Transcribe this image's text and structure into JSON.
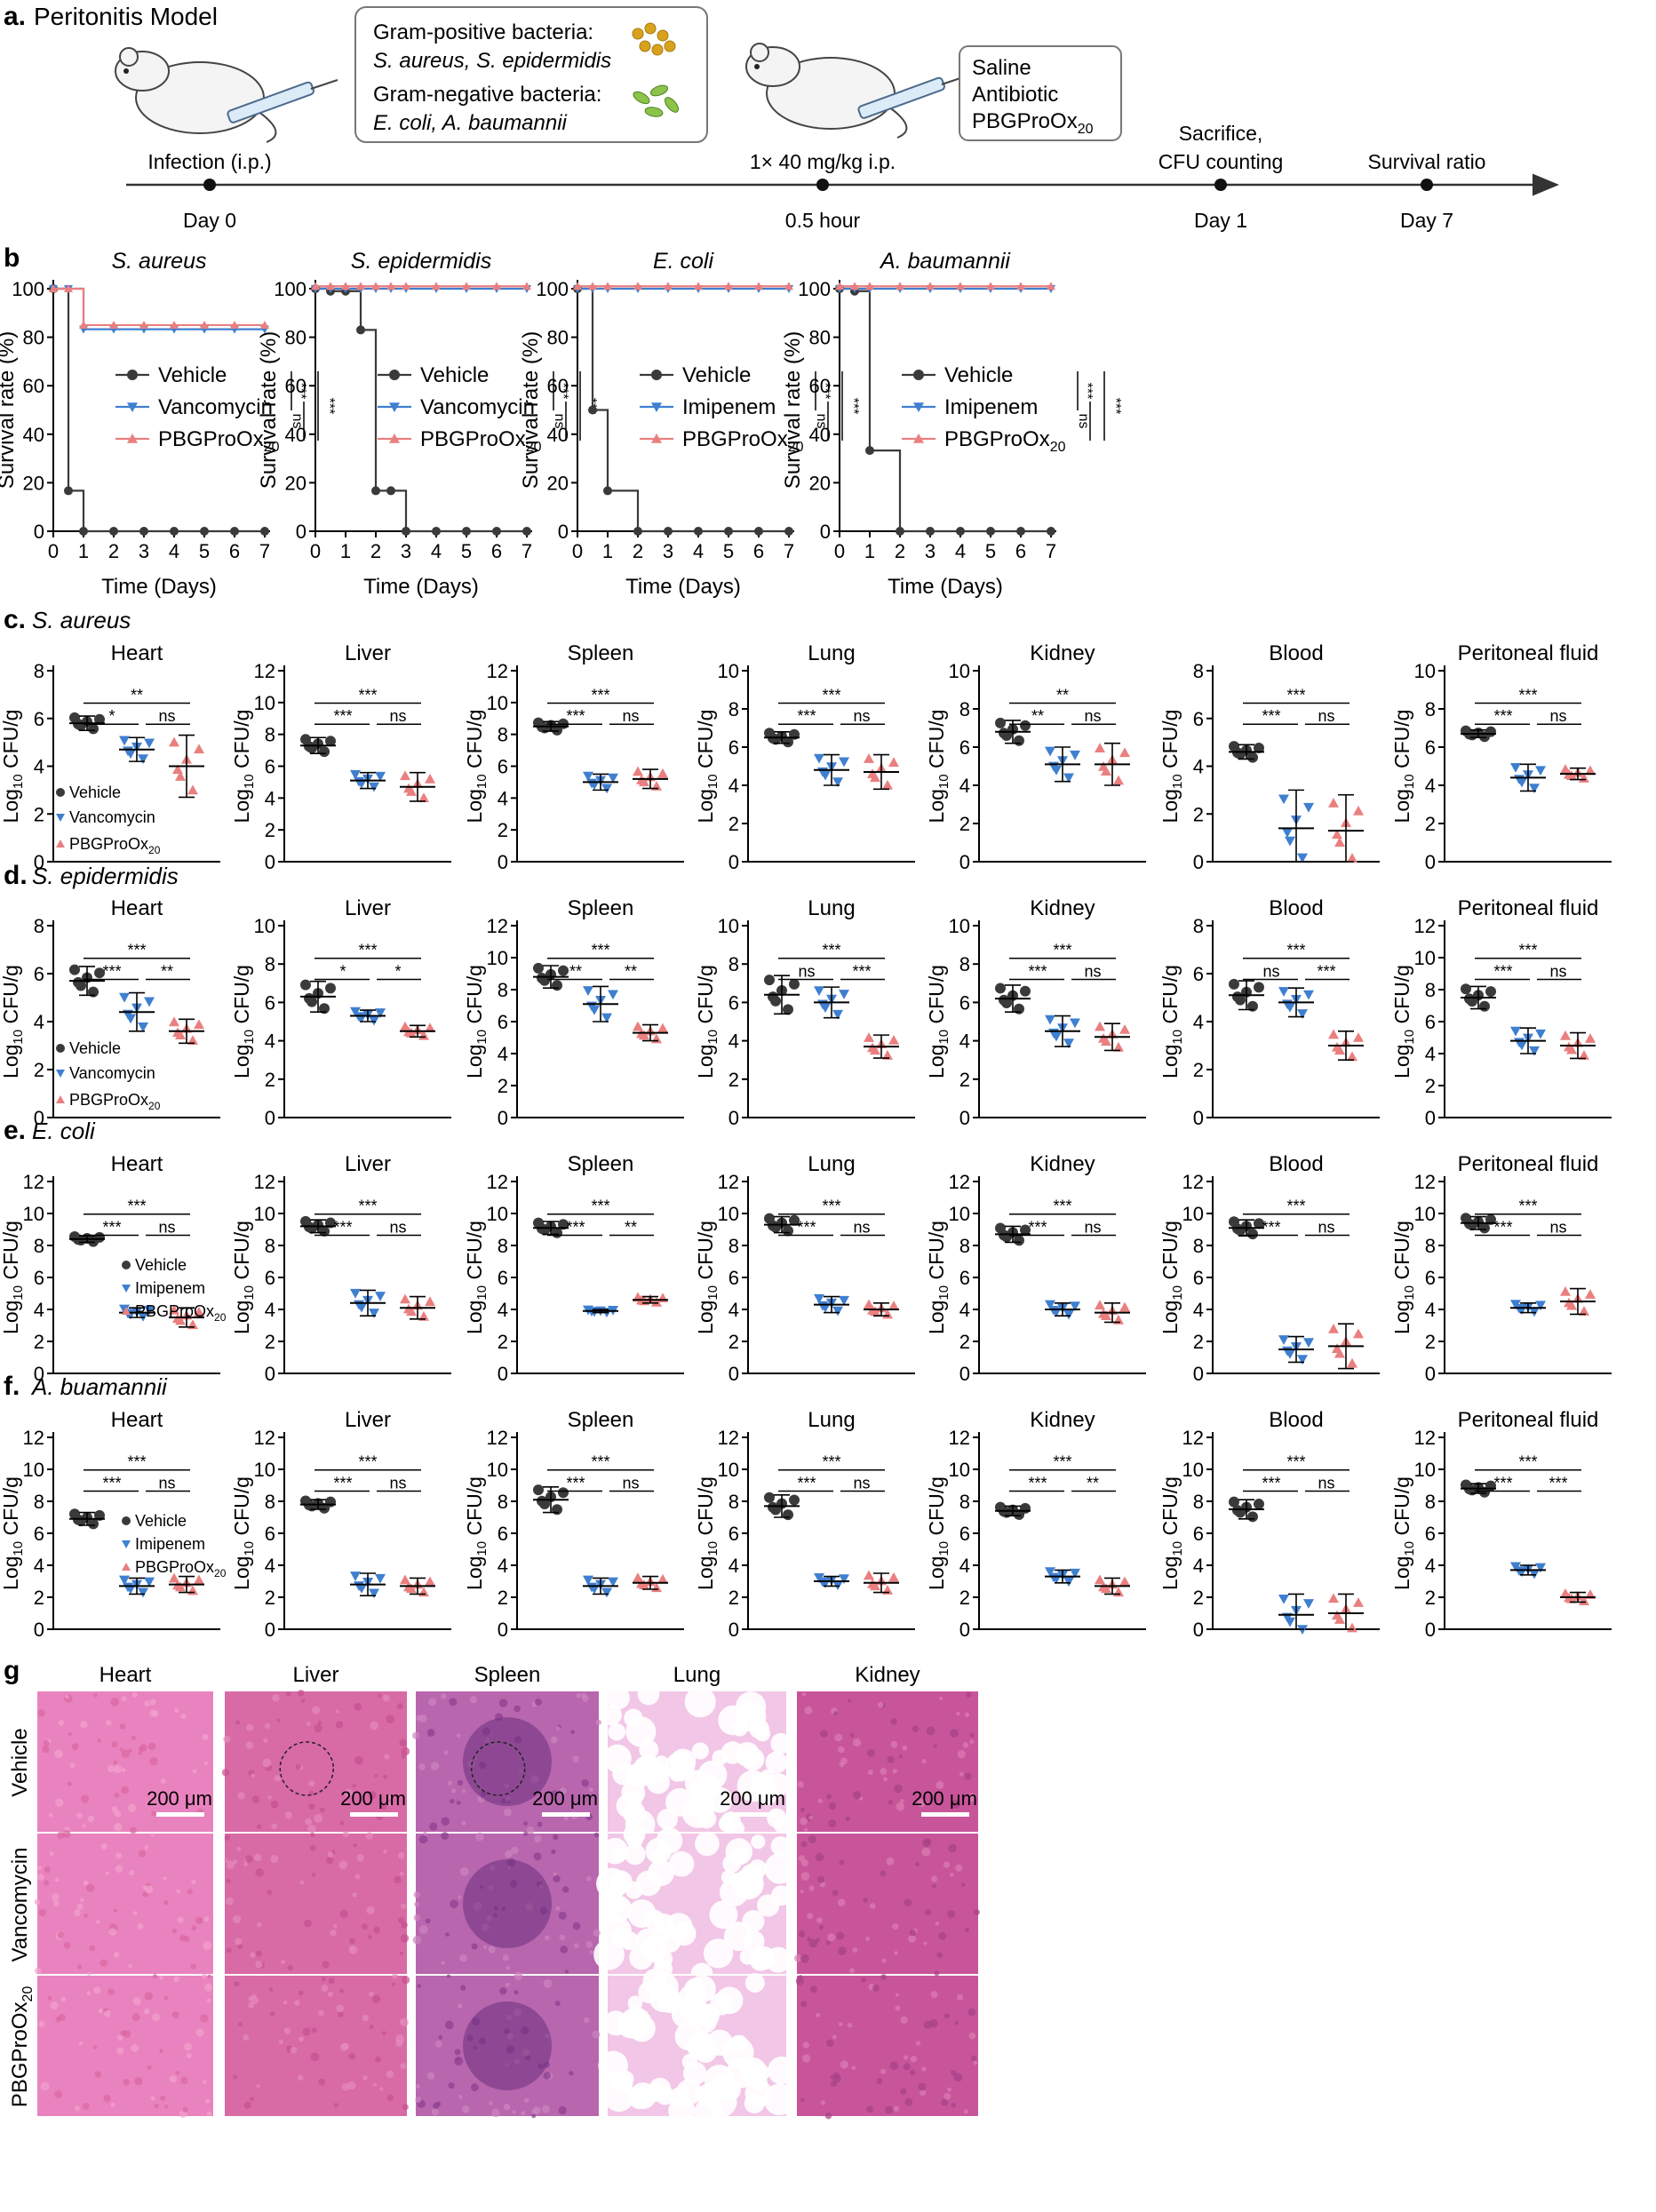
{
  "panel_a": {
    "letter": "a.",
    "title": "Peritonitis Model",
    "box1_line1": "Gram-positive bacteria:",
    "box1_line2": "S. aureus, S. epidermidis",
    "box1_line3": "Gram-negative bacteria:",
    "box1_line4": "E. coli, A. baumannii",
    "box2_line1": "Saline",
    "box2_line2": "Antibiotic",
    "box2_line3": "PBGProOx",
    "box2_line3_sub": "20",
    "t_infection": "Infection (i.p.)",
    "t_day0": "Day 0",
    "t_dose": "1× 40 mg/kg i.p.",
    "t_half": "0.5 hour",
    "t_sac1": "Sacrifice,",
    "t_sac2": "CFU counting",
    "t_day1": "Day 1",
    "t_surv": "Survival ratio",
    "t_day7": "Day 7"
  },
  "panel_b": {
    "letter": "b",
    "ylabel": "Survival rate (%)",
    "xlabel": "Time (Days)",
    "sig1": "***",
    "sig2": "ns",
    "sig3": "***"
  },
  "panel_c": {
    "letter": "c.",
    "organism": "S. aureus"
  },
  "panel_d": {
    "letter": "d.",
    "organism": "S. epidermidis"
  },
  "panel_e": {
    "letter": "e.",
    "organism": "E. coli"
  },
  "panel_f": {
    "letter": "f.",
    "organism": "A. buamannii"
  },
  "cfu_ylabel_pre": "Log",
  "cfu_ylabel_sub": "10",
  "cfu_ylabel_post": " CFU/g",
  "legend_vehicle": "Vehicle",
  "legend_vanco": "Vancomycin",
  "legend_imipenem": "Imipenem",
  "legend_pbg": "PBGProOx",
  "legend_pbg_sub": "20",
  "panel_g": {
    "letter": "g",
    "columns": [
      "Heart",
      "Liver",
      "Spleen",
      "Lung",
      "Kidney"
    ],
    "rows": [
      "Vehicle",
      "Vancomycin",
      "PBGProOx"
    ],
    "row3_sub": "20",
    "scale": "200 μm"
  },
  "colors": {
    "vehicle": "#3a3a3a",
    "antibiotic": "#3f7fd0",
    "pbg": "#ea7f7f"
  },
  "chart_data": [
    {
      "type": "line",
      "panel": "b",
      "title": "S. aureus",
      "x": [
        0,
        0.5,
        1,
        2,
        3,
        4,
        5,
        6,
        7
      ],
      "xlim": [
        0,
        7
      ],
      "ylim": [
        0,
        100
      ],
      "series": [
        {
          "name": "Vehicle",
          "values": [
            100,
            16.7,
            0,
            0,
            0,
            0,
            0,
            0,
            0
          ]
        },
        {
          "name": "Vancomycin",
          "values": [
            100,
            100,
            83.3,
            83.3,
            83.3,
            83.3,
            83.3,
            83.3,
            83.3
          ]
        },
        {
          "name": "PBGProOx20",
          "values": [
            100,
            100,
            85,
            85,
            85,
            85,
            85,
            85,
            85
          ]
        }
      ]
    },
    {
      "type": "line",
      "panel": "b",
      "title": "S. epidermidis",
      "x": [
        0,
        0.5,
        1,
        1.5,
        2,
        2.5,
        3,
        4,
        5,
        6,
        7
      ],
      "xlim": [
        0,
        7
      ],
      "ylim": [
        0,
        100
      ],
      "series": [
        {
          "name": "Vehicle",
          "values": [
            100,
            99,
            99,
            83,
            16.7,
            16.7,
            0,
            0,
            0,
            0,
            0
          ]
        },
        {
          "name": "Vancomycin",
          "values": [
            100,
            100,
            100,
            100,
            100,
            100,
            100,
            100,
            100,
            100,
            100
          ]
        },
        {
          "name": "PBGProOx20",
          "values": [
            101,
            101,
            101,
            101,
            101,
            101,
            101,
            101,
            101,
            101,
            101
          ]
        }
      ]
    },
    {
      "type": "line",
      "panel": "b",
      "title": "E. coli",
      "x": [
        0,
        0.5,
        1,
        2,
        3,
        4,
        5,
        6,
        7
      ],
      "xlim": [
        0,
        7
      ],
      "ylim": [
        0,
        100
      ],
      "series": [
        {
          "name": "Vehicle",
          "values": [
            100,
            50,
            16.7,
            0,
            0,
            0,
            0,
            0,
            0
          ]
        },
        {
          "name": "Imipenem",
          "values": [
            100,
            100,
            100,
            100,
            100,
            100,
            100,
            100,
            100
          ]
        },
        {
          "name": "PBGProOx20",
          "values": [
            101,
            101,
            101,
            101,
            101,
            101,
            101,
            101,
            101
          ]
        }
      ]
    },
    {
      "type": "line",
      "panel": "b",
      "title": "A. baumannii",
      "x": [
        0,
        0.5,
        1,
        2,
        3,
        4,
        5,
        6,
        7
      ],
      "xlim": [
        0,
        7
      ],
      "ylim": [
        0,
        100
      ],
      "series": [
        {
          "name": "Vehicle",
          "values": [
            100,
            99,
            33.3,
            0,
            0,
            0,
            0,
            0,
            0
          ]
        },
        {
          "name": "Imipenem",
          "values": [
            100,
            100,
            100,
            100,
            100,
            100,
            100,
            100,
            100
          ]
        },
        {
          "name": "PBGProOx20",
          "values": [
            101,
            101,
            101,
            101,
            101,
            101,
            101,
            101,
            101
          ]
        }
      ]
    },
    {
      "type": "scatter",
      "panel": "c",
      "title": "Heart",
      "ymax": 8,
      "ystep": 2,
      "means": [
        5.8,
        4.7,
        4.0
      ],
      "sd": [
        0.3,
        0.5,
        1.3
      ],
      "sigs": [
        "*",
        "ns",
        "**"
      ],
      "legend": "vanco"
    },
    {
      "type": "scatter",
      "panel": "c",
      "title": "Liver",
      "ymax": 12,
      "ystep": 2,
      "means": [
        7.3,
        5.1,
        4.7
      ],
      "sd": [
        0.5,
        0.5,
        0.9
      ],
      "sigs": [
        "***",
        "ns",
        "***"
      ]
    },
    {
      "type": "scatter",
      "panel": "c",
      "title": "Spleen",
      "ymax": 12,
      "ystep": 2,
      "means": [
        8.5,
        5.0,
        5.2
      ],
      "sd": [
        0.3,
        0.5,
        0.6
      ],
      "sigs": [
        "***",
        "ns",
        "***"
      ]
    },
    {
      "type": "scatter",
      "panel": "c",
      "title": "Lung",
      "ymax": 10,
      "ystep": 2,
      "means": [
        6.5,
        4.8,
        4.7
      ],
      "sd": [
        0.3,
        0.8,
        0.9
      ],
      "sigs": [
        "***",
        "ns",
        "***"
      ]
    },
    {
      "type": "scatter",
      "panel": "c",
      "title": "Kidney",
      "ymax": 10,
      "ystep": 2,
      "means": [
        6.8,
        5.1,
        5.1
      ],
      "sd": [
        0.6,
        0.9,
        1.1
      ],
      "sigs": [
        "**",
        "ns",
        "**"
      ]
    },
    {
      "type": "scatter",
      "panel": "c",
      "title": "Blood",
      "ymax": 8,
      "ystep": 2,
      "means": [
        4.6,
        1.4,
        1.3
      ],
      "sd": [
        0.3,
        1.6,
        1.5
      ],
      "sigs": [
        "***",
        "ns",
        "***"
      ]
    },
    {
      "type": "scatter",
      "panel": "c",
      "title": "Peritoneal fluid",
      "ymax": 10,
      "ystep": 2,
      "means": [
        6.7,
        4.4,
        4.6
      ],
      "sd": [
        0.2,
        0.7,
        0.3
      ],
      "sigs": [
        "***",
        "ns",
        "***"
      ]
    },
    {
      "type": "scatter",
      "panel": "d",
      "title": "Heart",
      "ymax": 8,
      "ystep": 2,
      "means": [
        5.7,
        4.4,
        3.6
      ],
      "sd": [
        0.6,
        0.8,
        0.5
      ],
      "sigs": [
        "***",
        "**",
        "***"
      ],
      "legend": "vanco"
    },
    {
      "type": "scatter",
      "panel": "d",
      "title": "Liver",
      "ymax": 10,
      "ystep": 2,
      "means": [
        6.3,
        5.3,
        4.5
      ],
      "sd": [
        0.8,
        0.3,
        0.3
      ],
      "sigs": [
        "*",
        "*",
        "***"
      ]
    },
    {
      "type": "scatter",
      "panel": "d",
      "title": "Spleen",
      "ymax": 12,
      "ystep": 2,
      "means": [
        8.8,
        7.1,
        5.3
      ],
      "sd": [
        0.7,
        1.1,
        0.5
      ],
      "sigs": [
        "**",
        "**",
        "***"
      ]
    },
    {
      "type": "scatter",
      "panel": "d",
      "title": "Lung",
      "ymax": 10,
      "ystep": 2,
      "means": [
        6.4,
        6.0,
        3.7
      ],
      "sd": [
        1.0,
        0.8,
        0.6
      ],
      "sigs": [
        "ns",
        "***",
        "***"
      ]
    },
    {
      "type": "scatter",
      "panel": "d",
      "title": "Kidney",
      "ymax": 10,
      "ystep": 2,
      "means": [
        6.2,
        4.5,
        4.2
      ],
      "sd": [
        0.7,
        0.8,
        0.7
      ],
      "sigs": [
        "***",
        "ns",
        "***"
      ]
    },
    {
      "type": "scatter",
      "panel": "d",
      "title": "Blood",
      "ymax": 8,
      "ystep": 2,
      "means": [
        5.1,
        4.8,
        3.0
      ],
      "sd": [
        0.6,
        0.6,
        0.6
      ],
      "sigs": [
        "ns",
        "***",
        "***"
      ]
    },
    {
      "type": "scatter",
      "panel": "d",
      "title": "Peritoneal fluid",
      "ymax": 12,
      "ystep": 2,
      "means": [
        7.5,
        4.8,
        4.5
      ],
      "sd": [
        0.7,
        0.8,
        0.8
      ],
      "sigs": [
        "***",
        "ns",
        "***"
      ]
    },
    {
      "type": "scatter",
      "panel": "e",
      "title": "Heart",
      "ymax": 12,
      "ystep": 2,
      "means": [
        8.4,
        3.8,
        3.5
      ],
      "sd": [
        0.2,
        0.3,
        0.6
      ],
      "sigs": [
        "***",
        "ns",
        "***"
      ],
      "legend": "imipenem"
    },
    {
      "type": "scatter",
      "panel": "e",
      "title": "Liver",
      "ymax": 12,
      "ystep": 2,
      "means": [
        9.2,
        4.4,
        4.1
      ],
      "sd": [
        0.4,
        0.8,
        0.7
      ],
      "sigs": [
        "***",
        "ns",
        "***"
      ]
    },
    {
      "type": "scatter",
      "panel": "e",
      "title": "Spleen",
      "ymax": 12,
      "ystep": 2,
      "means": [
        9.1,
        3.9,
        4.6
      ],
      "sd": [
        0.4,
        0.1,
        0.2
      ],
      "sigs": [
        "***",
        "**",
        "***"
      ]
    },
    {
      "type": "scatter",
      "panel": "e",
      "title": "Lung",
      "ymax": 12,
      "ystep": 2,
      "means": [
        9.3,
        4.3,
        4.0
      ],
      "sd": [
        0.5,
        0.5,
        0.4
      ],
      "sigs": [
        "***",
        "ns",
        "***"
      ]
    },
    {
      "type": "scatter",
      "panel": "e",
      "title": "Kidney",
      "ymax": 12,
      "ystep": 2,
      "means": [
        8.7,
        4.0,
        3.8
      ],
      "sd": [
        0.5,
        0.4,
        0.6
      ],
      "sigs": [
        "***",
        "ns",
        "***"
      ]
    },
    {
      "type": "scatter",
      "panel": "e",
      "title": "Blood",
      "ymax": 12,
      "ystep": 2,
      "means": [
        9.1,
        1.5,
        1.7
      ],
      "sd": [
        0.5,
        0.8,
        1.4
      ],
      "sigs": [
        "***",
        "ns",
        "***"
      ]
    },
    {
      "type": "scatter",
      "panel": "e",
      "title": "Peritoneal fluid",
      "ymax": 12,
      "ystep": 2,
      "means": [
        9.4,
        4.1,
        4.5
      ],
      "sd": [
        0.4,
        0.3,
        0.8
      ],
      "sigs": [
        "***",
        "ns",
        "***"
      ]
    },
    {
      "type": "scatter",
      "panel": "f",
      "title": "Heart",
      "ymax": 12,
      "ystep": 2,
      "means": [
        6.9,
        2.7,
        2.8
      ],
      "sd": [
        0.4,
        0.5,
        0.5
      ],
      "sigs": [
        "***",
        "ns",
        "***"
      ],
      "legend": "imipenem"
    },
    {
      "type": "scatter",
      "panel": "f",
      "title": "Liver",
      "ymax": 12,
      "ystep": 2,
      "means": [
        7.8,
        2.8,
        2.7
      ],
      "sd": [
        0.3,
        0.7,
        0.5
      ],
      "sigs": [
        "***",
        "ns",
        "***"
      ]
    },
    {
      "type": "scatter",
      "panel": "f",
      "title": "Spleen",
      "ymax": 12,
      "ystep": 2,
      "means": [
        8.1,
        2.7,
        2.9
      ],
      "sd": [
        0.8,
        0.5,
        0.4
      ],
      "sigs": [
        "***",
        "ns",
        "***"
      ]
    },
    {
      "type": "scatter",
      "panel": "f",
      "title": "Lung",
      "ymax": 12,
      "ystep": 2,
      "means": [
        7.7,
        3.0,
        2.9
      ],
      "sd": [
        0.7,
        0.3,
        0.6
      ],
      "sigs": [
        "***",
        "ns",
        "***"
      ]
    },
    {
      "type": "scatter",
      "panel": "f",
      "title": "Kidney",
      "ymax": 12,
      "ystep": 2,
      "means": [
        7.4,
        3.3,
        2.7
      ],
      "sd": [
        0.3,
        0.4,
        0.5
      ],
      "sigs": [
        "***",
        "**",
        "***"
      ]
    },
    {
      "type": "scatter",
      "panel": "f",
      "title": "Blood",
      "ymax": 12,
      "ystep": 2,
      "means": [
        7.5,
        0.9,
        1.0
      ],
      "sd": [
        0.6,
        1.3,
        1.2
      ],
      "sigs": [
        "***",
        "ns",
        "***"
      ]
    },
    {
      "type": "scatter",
      "panel": "f",
      "title": "Peritoneal fluid",
      "ymax": 12,
      "ystep": 2,
      "means": [
        8.8,
        3.7,
        2.0
      ],
      "sd": [
        0.3,
        0.3,
        0.3
      ],
      "sigs": [
        "***",
        "***",
        "***"
      ]
    }
  ]
}
